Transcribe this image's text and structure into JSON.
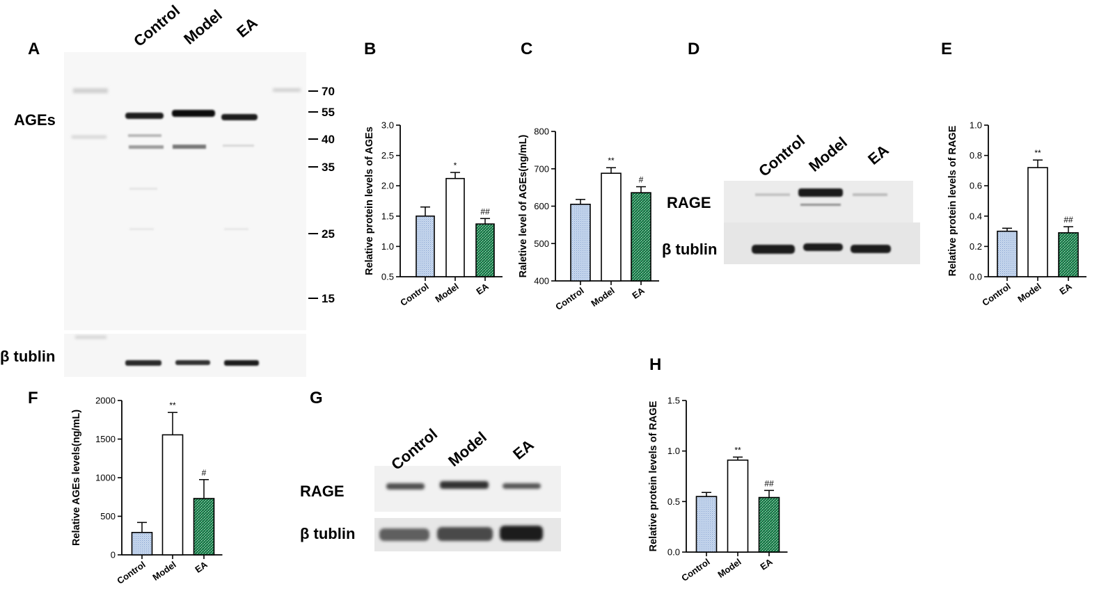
{
  "panels": {
    "A": "A",
    "B": "B",
    "C": "C",
    "D": "D",
    "E": "E",
    "F": "F",
    "G": "G",
    "H": "H"
  },
  "blots": {
    "A": {
      "lanes": [
        "Control",
        "Model",
        "EA"
      ],
      "bands": [
        "AGEs",
        "β tublin"
      ],
      "markers": [
        "70",
        "55",
        "40",
        "35",
        "25",
        "15"
      ]
    },
    "D": {
      "lanes": [
        "Control",
        "Model",
        "EA"
      ],
      "bands": [
        "RAGE",
        "β tublin"
      ]
    },
    "G": {
      "lanes": [
        "Control",
        "Model",
        "EA"
      ],
      "bands": [
        "RAGE",
        "β tublin"
      ]
    }
  },
  "colors": {
    "control_fill": "#b9cde8",
    "model_fill": "#ffffff",
    "ea_fill": "#1e8a55",
    "axis": "#000000"
  },
  "chart_data": [
    {
      "id": "B",
      "type": "bar",
      "categories": [
        "Control",
        "Model",
        "EA"
      ],
      "values": [
        1.5,
        2.12,
        1.37
      ],
      "errors": [
        0.15,
        0.1,
        0.09
      ],
      "significance": [
        "",
        "*",
        "##"
      ],
      "ylabel": "Relative protein levels of AGEs",
      "ylim": [
        0.5,
        3.0
      ],
      "yticks": [
        "0.5",
        "1.0",
        "1.5",
        "2.0",
        "2.5",
        "3.0"
      ]
    },
    {
      "id": "C",
      "type": "bar",
      "categories": [
        "Control",
        "Model",
        "EA"
      ],
      "values": [
        605,
        688,
        636
      ],
      "errors": [
        13,
        15,
        16
      ],
      "significance": [
        "",
        "**",
        "#"
      ],
      "ylabel": "Raletive level of AGEs(ng/mL)",
      "ylim": [
        400,
        800
      ],
      "yticks": [
        "400",
        "500",
        "600",
        "700",
        "800"
      ]
    },
    {
      "id": "E",
      "type": "bar",
      "categories": [
        "Control",
        "Model",
        "EA"
      ],
      "values": [
        0.3,
        0.72,
        0.29
      ],
      "errors": [
        0.02,
        0.05,
        0.04
      ],
      "significance": [
        "",
        "**",
        "##"
      ],
      "ylabel": "Relative protein levels of RAGE",
      "ylim": [
        0.0,
        1.0
      ],
      "yticks": [
        "0.0",
        "0.2",
        "0.4",
        "0.6",
        "0.8",
        "1.0"
      ]
    },
    {
      "id": "F",
      "type": "bar",
      "categories": [
        "Control",
        "Model",
        "EA"
      ],
      "values": [
        290,
        1555,
        730
      ],
      "errors": [
        130,
        290,
        245
      ],
      "significance": [
        "",
        "**",
        "#"
      ],
      "ylabel": "Relative AGEs levels(ng/mL)",
      "ylim": [
        0,
        2000
      ],
      "yticks": [
        "0",
        "500",
        "1000",
        "1500",
        "2000"
      ]
    },
    {
      "id": "H",
      "type": "bar",
      "categories": [
        "Control",
        "Model",
        "EA"
      ],
      "values": [
        0.55,
        0.91,
        0.54
      ],
      "errors": [
        0.04,
        0.03,
        0.07
      ],
      "significance": [
        "",
        "**",
        "##"
      ],
      "ylabel": "Relative protein levels of RAGE",
      "ylim": [
        0.0,
        1.5
      ],
      "yticks": [
        "0.0",
        "0.5",
        "1.0",
        "1.5"
      ]
    }
  ]
}
